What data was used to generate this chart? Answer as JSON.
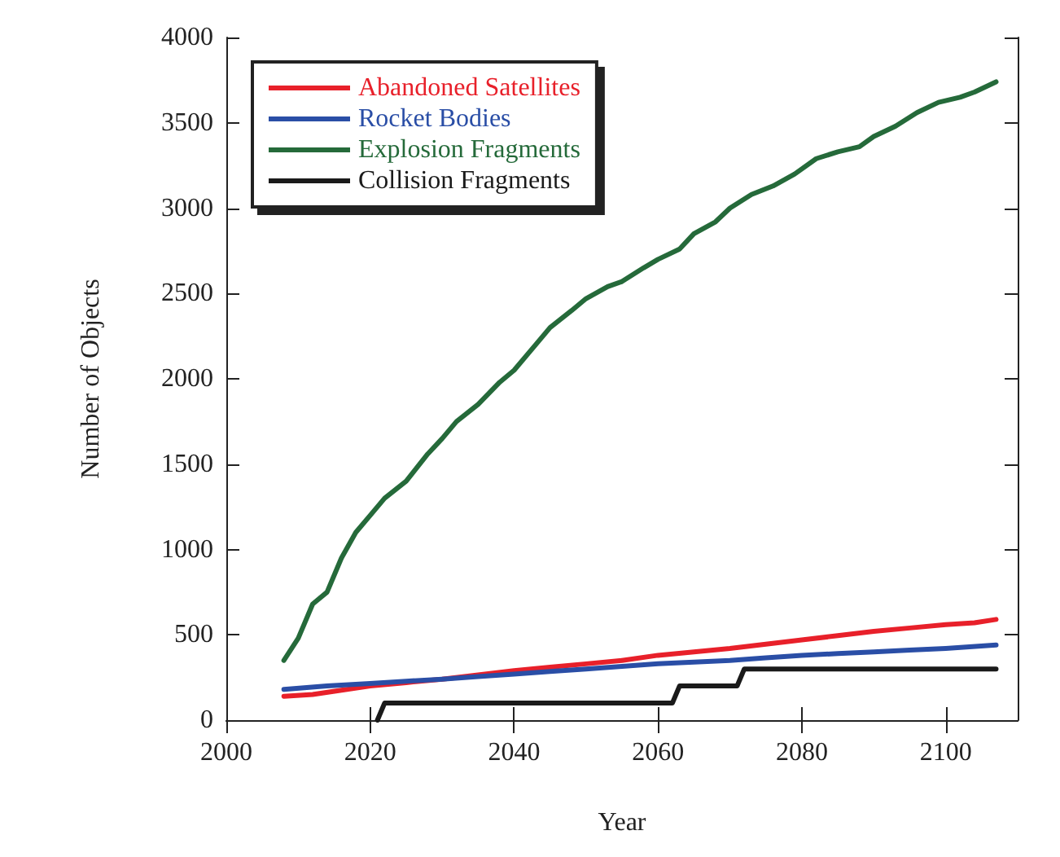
{
  "chart_data": {
    "type": "line",
    "xlabel": "Year",
    "ylabel": "Number of Objects",
    "xlim": [
      2000,
      2110
    ],
    "xticks": [
      2000,
      2020,
      2040,
      2060,
      2080,
      2100
    ],
    "ylim": [
      0,
      4000
    ],
    "yticks": [
      0,
      500,
      1000,
      1500,
      2000,
      2500,
      3000,
      3500,
      4000
    ],
    "grid": false,
    "legend": "top left",
    "marker": "none",
    "line_style": "solid",
    "series": [
      {
        "name": "Abandoned Satellites",
        "color": "#e8202a",
        "x": [
          2008,
          2012,
          2016,
          2020,
          2025,
          2030,
          2035,
          2040,
          2045,
          2050,
          2055,
          2060,
          2065,
          2070,
          2075,
          2080,
          2085,
          2090,
          2095,
          2100,
          2104,
          2107
        ],
        "values": [
          140,
          150,
          175,
          200,
          220,
          240,
          265,
          290,
          310,
          330,
          350,
          380,
          400,
          420,
          445,
          470,
          495,
          520,
          540,
          560,
          570,
          590
        ]
      },
      {
        "name": "Rocket Bodies",
        "color": "#2a4ea6",
        "x": [
          2008,
          2014,
          2020,
          2025,
          2030,
          2035,
          2040,
          2045,
          2050,
          2055,
          2060,
          2065,
          2070,
          2075,
          2080,
          2085,
          2090,
          2095,
          2100,
          2107
        ],
        "values": [
          180,
          200,
          215,
          228,
          240,
          255,
          270,
          285,
          300,
          315,
          330,
          340,
          350,
          365,
          380,
          390,
          400,
          410,
          420,
          440
        ]
      },
      {
        "name": "Explosion Fragments",
        "color": "#256a3a",
        "x": [
          2008,
          2010,
          2012,
          2014,
          2016,
          2018,
          2020,
          2022,
          2025,
          2028,
          2030,
          2032,
          2035,
          2038,
          2040,
          2043,
          2045,
          2048,
          2050,
          2053,
          2055,
          2058,
          2060,
          2063,
          2065,
          2068,
          2070,
          2073,
          2076,
          2079,
          2082,
          2085,
          2088,
          2090,
          2093,
          2096,
          2099,
          2102,
          2104,
          2107
        ],
        "values": [
          350,
          480,
          680,
          750,
          950,
          1100,
          1200,
          1300,
          1400,
          1560,
          1650,
          1750,
          1850,
          1980,
          2050,
          2200,
          2300,
          2400,
          2470,
          2540,
          2570,
          2650,
          2700,
          2760,
          2850,
          2920,
          3000,
          3080,
          3130,
          3200,
          3290,
          3330,
          3360,
          3420,
          3480,
          3560,
          3620,
          3650,
          3680,
          3740
        ]
      },
      {
        "name": "Collision Fragments",
        "color": "#1a1a1a",
        "x": [
          2021,
          2022,
          2062,
          2063,
          2071,
          2072,
          2107
        ],
        "values": [
          0,
          100,
          100,
          200,
          200,
          300,
          300
        ]
      }
    ]
  }
}
